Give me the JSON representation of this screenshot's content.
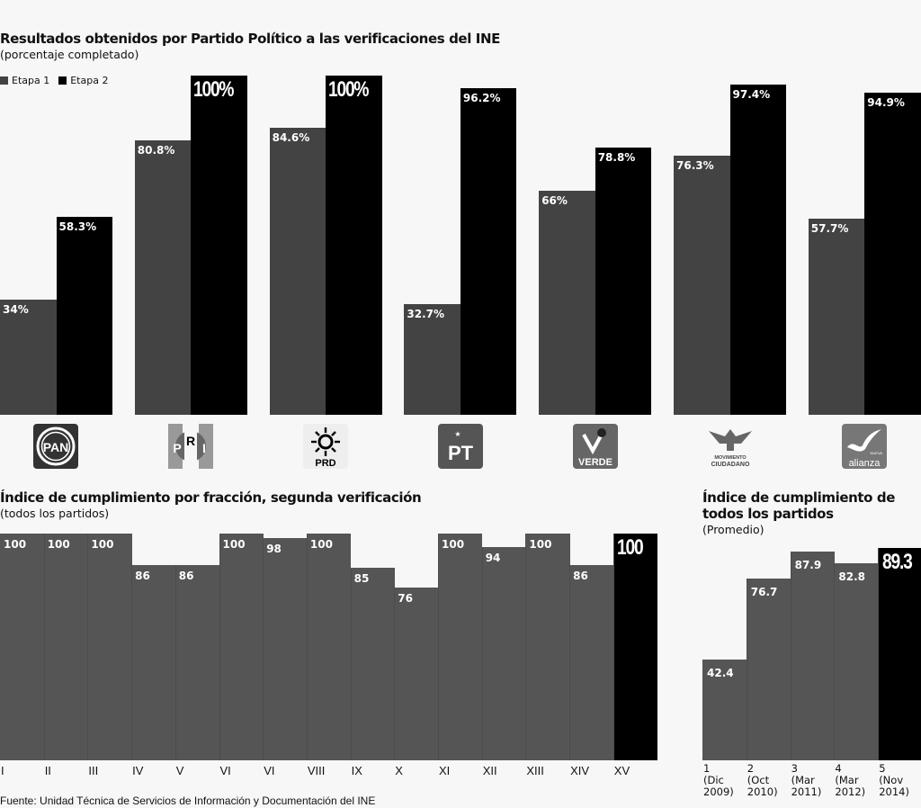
{
  "chart_data": [
    {
      "type": "bar",
      "title": "Resultados obtenidos por Partido Político a las verificaciones del INE",
      "subtitle": "(porcentaje completado)",
      "legend": [
        "Etapa 1",
        "Etapa 2"
      ],
      "legend_position": "top-left",
      "categories": [
        "PAN",
        "PRI",
        "PRD",
        "PT",
        "VERDE",
        "MOVIMIENTO CIUDADANO",
        "alianza"
      ],
      "series": [
        {
          "name": "Etapa 1",
          "values": [
            34,
            80.8,
            84.6,
            32.7,
            66,
            76.3,
            57.7
          ],
          "labels": [
            "34%",
            "80.8%",
            "84.6%",
            "32.7%",
            "66%",
            "76.3%",
            "57.7%"
          ],
          "color": "#434343"
        },
        {
          "name": "Etapa 2",
          "values": [
            58.3,
            100,
            100,
            96.2,
            78.8,
            97.4,
            94.9
          ],
          "labels": [
            "58.3%",
            "100%",
            "100%",
            "96.2%",
            "78.8%",
            "97.4%",
            "94.9%"
          ],
          "color": "#000000"
        }
      ],
      "ylim": [
        0,
        100
      ],
      "grid": false
    },
    {
      "type": "bar",
      "title": "Índice de cumplimiento por fracción, segunda verificación",
      "subtitle": "(todos los partidos)",
      "categories": [
        "I",
        "II",
        "III",
        "IV",
        "V",
        "VI",
        "VI",
        "VIII",
        "IX",
        "X",
        "XI",
        "XII",
        "XIII",
        "XIV",
        "XV"
      ],
      "values": [
        100,
        100,
        100,
        86,
        86,
        100,
        98,
        100,
        85,
        76,
        100,
        94,
        100,
        86,
        100
      ],
      "labels": [
        "100",
        "100",
        "100",
        "86",
        "86",
        "100",
        "98",
        "100",
        "85",
        "76",
        "100",
        "94",
        "100",
        "86",
        "100"
      ],
      "highlight_index": 14,
      "color": "#555555",
      "highlight_color": "#000000",
      "ylim": [
        0,
        100
      ],
      "grid": false
    },
    {
      "type": "bar",
      "title": "Índice de cumplimiento de todos los partidos",
      "title_lines": [
        "Índice de cumplimiento de",
        "todos los partidos"
      ],
      "subtitle": "(Promedio)",
      "categories": [
        {
          "num": "1",
          "month": "(Dic",
          "year": "2009)"
        },
        {
          "num": "2",
          "month": "(Oct",
          "year": "2010)"
        },
        {
          "num": "3",
          "month": "(Mar",
          "year": "2011)"
        },
        {
          "num": "4",
          "month": "(Mar",
          "year": "2012)"
        },
        {
          "num": "5",
          "month": "(Nov",
          "year": "2014)"
        }
      ],
      "values": [
        42.4,
        76.7,
        87.9,
        82.8,
        89.3
      ],
      "labels": [
        "42.4",
        "76.7",
        "87.9",
        "82.8",
        "89.3"
      ],
      "highlight_index": 4,
      "color": "#555555",
      "highlight_color": "#000000",
      "ylim": [
        0,
        100
      ],
      "grid": false
    }
  ],
  "party_logos": [
    {
      "name": "PAN",
      "icon": "pan-logo-icon"
    },
    {
      "name": "PRI",
      "icon": "pri-logo-icon"
    },
    {
      "name": "PRD",
      "icon": "prd-logo-icon"
    },
    {
      "name": "PT",
      "icon": "pt-logo-icon"
    },
    {
      "name": "VERDE",
      "icon": "verde-logo-icon"
    },
    {
      "name": "MOVIMIENTO CIUDADANO",
      "line1": "MOVIMIENTO",
      "line2": "CIUDADANO",
      "icon": "movimiento-ciudadano-logo-icon"
    },
    {
      "name": "alianza",
      "small": "NUEVA",
      "icon": "nueva-alianza-logo-icon"
    }
  ],
  "source": "Fuente: Unidad Técnica de Servicios de Información y Documentación del INE"
}
